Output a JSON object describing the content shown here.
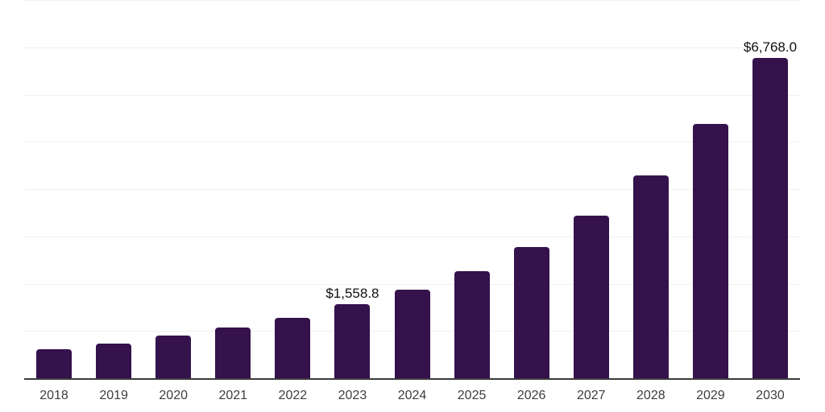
{
  "chart_data": {
    "type": "bar",
    "title": "",
    "xlabel": "",
    "ylabel": "",
    "categories": [
      "2018",
      "2019",
      "2020",
      "2021",
      "2022",
      "2023",
      "2024",
      "2025",
      "2026",
      "2027",
      "2028",
      "2029",
      "2030"
    ],
    "values": [
      620,
      730,
      895,
      1070,
      1280,
      1558.8,
      1870,
      2270,
      2780,
      3435,
      4285,
      5380,
      6768
    ],
    "value_labels": [
      "",
      "",
      "",
      "",
      "",
      "$1,558.8",
      "",
      "",
      "",
      "",
      "",
      "",
      "$6,768.0"
    ],
    "ylim": [
      0,
      8000
    ],
    "grid": true,
    "grid_step": 1000,
    "y_tick_labels_visible": false,
    "legend_position": "none",
    "colors": {
      "bar": "#35124B",
      "gridline": "#F0F0F0",
      "axis": "#3B3B3B",
      "data_label": "#111111",
      "tick_label": "#3D3D3D",
      "background": "#FFFFFF"
    }
  }
}
